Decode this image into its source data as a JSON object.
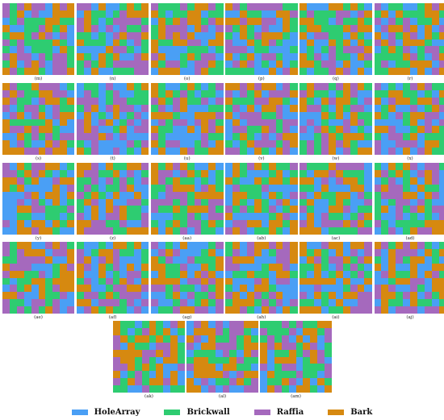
{
  "colors": {
    "HoleArray": "#4a9ff5",
    "Brickwall": "#2ecc71",
    "Raffia": "#a569bd",
    "Bark": "#d68910"
  },
  "legend": [
    {
      "label": "HoleArray",
      "color": "#4a9ff5"
    },
    {
      "label": "Brickwall",
      "color": "#2ecc71"
    },
    {
      "label": "Raffia",
      "color": "#a569bd"
    },
    {
      "label": "Bark",
      "color": "#d68910"
    }
  ],
  "panels": [
    {
      "label": "(m)"
    },
    {
      "label": "(n)"
    },
    {
      "label": "(o)"
    },
    {
      "label": "(p)"
    },
    {
      "label": "(q)"
    },
    {
      "label": "(r)"
    },
    {
      "label": "(s)"
    },
    {
      "label": "(t)"
    },
    {
      "label": "(u)"
    },
    {
      "label": "(v)"
    },
    {
      "label": "(w)"
    },
    {
      "label": "(x)"
    },
    {
      "label": "(y)"
    },
    {
      "label": "(z)"
    },
    {
      "label": "(aa)"
    },
    {
      "label": "(ab)"
    },
    {
      "label": "(ac)"
    },
    {
      "label": "(ad)"
    },
    {
      "label": "(ae)"
    },
    {
      "label": "(af)"
    },
    {
      "label": "(ag)"
    },
    {
      "label": "(ah)"
    },
    {
      "label": "(ai)"
    },
    {
      "label": "(aj)"
    },
    {
      "label": "(ak)"
    },
    {
      "label": "(al)"
    },
    {
      "label": "(am)"
    }
  ],
  "grid_rows": 10,
  "grid_cols": 10,
  "class_order": [
    "HoleArray",
    "Brickwall",
    "Raffia",
    "Bark"
  ]
}
